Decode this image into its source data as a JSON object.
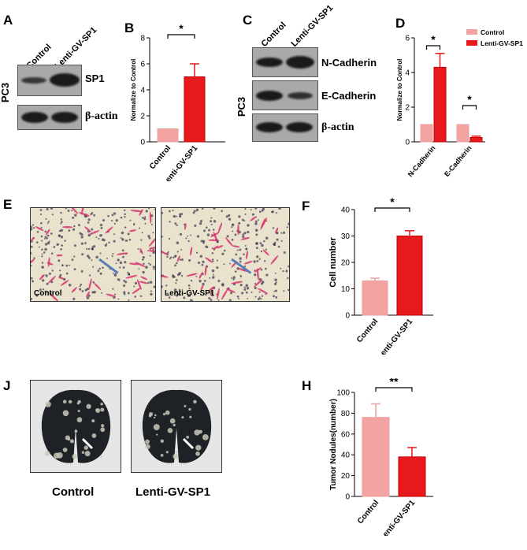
{
  "panels": {
    "A": "A",
    "B": "B",
    "C": "C",
    "D": "D",
    "E": "E",
    "F": "F",
    "J": "J",
    "H": "H"
  },
  "cell_line": "PC3",
  "lanes": {
    "control": "Control",
    "lenti": "Lenti-GV-SP1"
  },
  "blotA": {
    "band1": "SP1",
    "band2": "β-actin"
  },
  "blotC": {
    "band1": "N-Cadherin",
    "band2": "E-Cadherin",
    "band3": "β-actin"
  },
  "micro_labels": {
    "left": "Control",
    "right": "Lenti-GV-SP1"
  },
  "lung_labels": {
    "left": "Control",
    "right": "Lenti-GV-SP1"
  },
  "colors": {
    "control": "#f4a3a3",
    "lenti": "#e8191c"
  },
  "chart_data": [
    {
      "id": "B",
      "type": "bar",
      "categories": [
        "Control",
        "Lenti-GV-SP1"
      ],
      "values": [
        1,
        5.0
      ],
      "errors": [
        0,
        1.0
      ],
      "ylabel": "Normalize to Control",
      "ylim": [
        0,
        8
      ],
      "yticks": [
        0,
        2,
        4,
        6,
        8
      ],
      "significance": "*"
    },
    {
      "id": "D",
      "type": "bar",
      "categories": [
        "N-Cadherin",
        "E-Cadherin"
      ],
      "series": [
        {
          "name": "Control",
          "values": [
            1,
            1
          ],
          "errors": [
            0,
            0
          ]
        },
        {
          "name": "Lenti-GV-SP1",
          "values": [
            4.3,
            0.25
          ],
          "errors": [
            0.8,
            0.08
          ]
        }
      ],
      "ylabel": "Normalize to Control",
      "ylim": [
        0,
        6
      ],
      "yticks": [
        0,
        2,
        4,
        6
      ],
      "significance": [
        "*",
        "*"
      ]
    },
    {
      "id": "F",
      "type": "bar",
      "categories": [
        "Control",
        "Lenti-GV-SP1"
      ],
      "values": [
        13,
        30
      ],
      "errors": [
        1,
        2
      ],
      "ylabel": "Cell number",
      "ylim": [
        0,
        40
      ],
      "yticks": [
        0,
        10,
        20,
        30,
        40
      ],
      "significance": "*"
    },
    {
      "id": "H",
      "type": "bar",
      "categories": [
        "Control",
        "Lenti-GV-SP1"
      ],
      "values": [
        76,
        38
      ],
      "errors": [
        13,
        9
      ],
      "ylabel": "Tumor Nodules(number)",
      "ylim": [
        0,
        100
      ],
      "yticks": [
        0,
        20,
        40,
        60,
        80,
        100
      ],
      "significance": "**"
    }
  ]
}
